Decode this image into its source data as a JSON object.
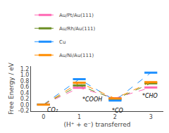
{
  "chart_data": {
    "type": "line",
    "xlabel": "(H⁺ + e⁻) transferred",
    "ylabel": "Free Energy / eV",
    "x": [
      0,
      1,
      2,
      3
    ],
    "xlim": [
      -0.35,
      3.35
    ],
    "ylim": [
      -0.22,
      1.3
    ],
    "xticks": [
      0,
      1,
      2,
      3
    ],
    "yticks": [
      -0.2,
      {
        "value": 0.0,
        "label": "0.0"
      },
      0.2,
      0.4,
      0.6,
      0.8,
      {
        "value": 1.0,
        "label": "1.0"
      },
      1.2
    ],
    "line_style": "dashed",
    "marker": "hline",
    "grid": false,
    "legend": "upper left",
    "annotations": [
      {
        "text": "CO₂",
        "x": 0.07,
        "y": -0.04
      },
      {
        "text": "*COOH",
        "x": 1.05,
        "y": 0.33
      },
      {
        "text": "*CO",
        "x": 1.88,
        "y": -0.05
      },
      {
        "text": "*CHO",
        "x": 2.72,
        "y": 0.44
      }
    ],
    "series": [
      {
        "name": "Au/Pt/Au(111)",
        "color": "#ff69b4",
        "values": [
          0.005,
          0.57,
          0.22,
          0.58
        ]
      },
      {
        "name": "Au/Rh/Au(111)",
        "color": "#6b8e23",
        "values": [
          0.005,
          0.65,
          0.18,
          0.72
        ]
      },
      {
        "name": "Cu",
        "color": "#1e90ff",
        "values": [
          0.005,
          0.86,
          0.14,
          1.08
        ]
      },
      {
        "name": "Au/Ni/Au(111)",
        "color": "#ff8c00",
        "values": [
          0.0,
          0.74,
          0.21,
          0.76
        ]
      }
    ]
  }
}
